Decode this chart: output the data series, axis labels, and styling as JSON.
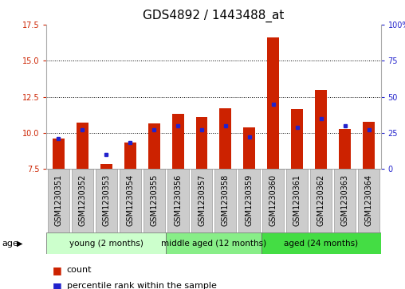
{
  "title": "GDS4892 / 1443488_at",
  "samples": [
    "GSM1230351",
    "GSM1230352",
    "GSM1230353",
    "GSM1230354",
    "GSM1230355",
    "GSM1230356",
    "GSM1230357",
    "GSM1230358",
    "GSM1230359",
    "GSM1230360",
    "GSM1230361",
    "GSM1230362",
    "GSM1230363",
    "GSM1230364"
  ],
  "bar_values": [
    9.6,
    10.7,
    7.85,
    9.35,
    10.65,
    11.3,
    11.1,
    11.7,
    10.4,
    16.6,
    11.65,
    12.95,
    10.3,
    10.75
  ],
  "blue_dot_values": [
    9.6,
    10.2,
    8.5,
    9.35,
    10.2,
    10.5,
    10.2,
    10.5,
    9.7,
    12.0,
    10.4,
    11.0,
    10.5,
    10.2
  ],
  "ylim_left": [
    7.5,
    17.5
  ],
  "ylim_right": [
    0,
    100
  ],
  "yticks_left": [
    7.5,
    10.0,
    12.5,
    15.0,
    17.5
  ],
  "yticks_right": [
    0,
    25,
    50,
    75,
    100
  ],
  "bar_color": "#cc2200",
  "dot_color": "#2222cc",
  "bar_bottom": 7.5,
  "groups": [
    {
      "label": "young (2 months)",
      "start": 0,
      "end": 5
    },
    {
      "label": "middle aged (12 months)",
      "start": 5,
      "end": 9
    },
    {
      "label": "aged (24 months)",
      "start": 9,
      "end": 14
    }
  ],
  "group_colors": [
    "#ccffcc",
    "#88ee88",
    "#44dd44"
  ],
  "legend_count_label": "count",
  "legend_pct_label": "percentile rank within the sample",
  "age_label": "age",
  "bg_color": "#ffffff",
  "title_fontsize": 11,
  "tick_fontsize": 7,
  "bar_width": 0.5,
  "grid_yticks": [
    10.0,
    12.5,
    15.0
  ],
  "label_bg_color": "#cccccc"
}
